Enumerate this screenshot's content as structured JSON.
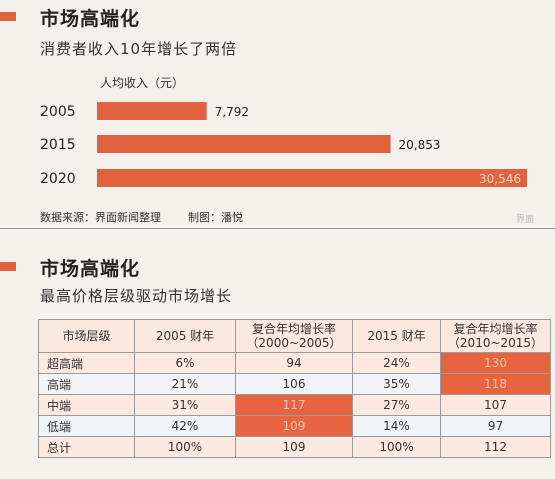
{
  "section1": {
    "title": "市场高端化",
    "subtitle": "消费者收入10年增长了两倍",
    "source": "数据来源：界面新闻整理",
    "credit": "制图：潘悦",
    "watermark": "界面"
  },
  "section2": {
    "title": "市场高端化",
    "subtitle": "最高价格层级驱动市场增长"
  },
  "colors": {
    "accent": "#e0623e",
    "highlight": "#e8643e"
  },
  "chart_data": [
    {
      "type": "bar",
      "orientation": "horizontal",
      "title": "人均收入（元）",
      "categories": [
        "2005",
        "2015",
        "2020"
      ],
      "values": [
        7792,
        20853,
        30546
      ],
      "value_labels": [
        "7,792",
        "20,853",
        "30,546"
      ],
      "xlim": [
        0,
        30546
      ]
    },
    {
      "type": "table",
      "columns": [
        "市场层级",
        "2005 财年",
        "复合年均增长率\n（2000~2005）",
        "2015 财年",
        "复合年均增长率\n（2010~2015）"
      ],
      "rows": [
        [
          "超高端",
          "6%",
          "94",
          "24%",
          "130"
        ],
        [
          "高端",
          "21%",
          "106",
          "35%",
          "118"
        ],
        [
          "中端",
          "31%",
          "117",
          "27%",
          "107"
        ],
        [
          "低端",
          "42%",
          "109",
          "14%",
          "97"
        ],
        [
          "总计",
          "100%",
          "109",
          "100%",
          "112"
        ]
      ],
      "highlighted_cells": [
        [
          0,
          4
        ],
        [
          1,
          4
        ],
        [
          2,
          2
        ],
        [
          3,
          2
        ]
      ]
    }
  ]
}
